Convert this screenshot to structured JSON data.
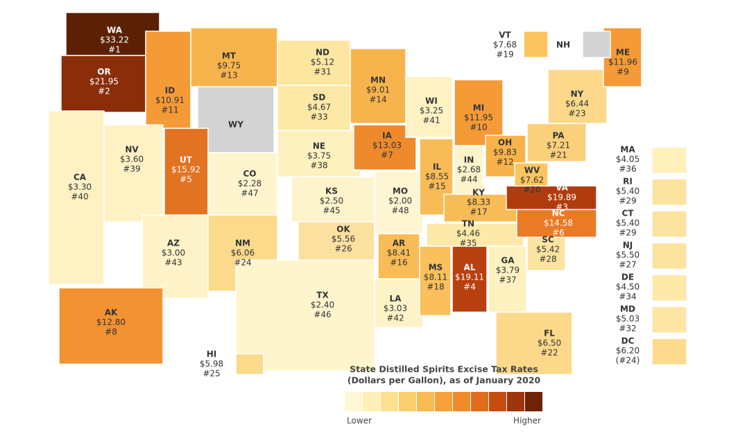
{
  "states": [
    {
      "abbr": "WA",
      "rate": "$33.22",
      "rank": "#1",
      "color": "#5c2105"
    },
    {
      "abbr": "OR",
      "rate": "$21.95",
      "rank": "#2",
      "color": "#8a2e0a"
    },
    {
      "abbr": "ID",
      "rate": "$10.91",
      "rank": "#11",
      "color": "#f49a36"
    },
    {
      "abbr": "MT",
      "rate": "$9.75",
      "rank": "#13",
      "color": "#f8b44c"
    },
    {
      "abbr": "ND",
      "rate": "$5.12",
      "rank": "#31",
      "color": "#fde7a0"
    },
    {
      "abbr": "SD",
      "rate": "$4.67",
      "rank": "#33",
      "color": "#fde9a6"
    },
    {
      "abbr": "WY",
      "color": "#d3d3d3"
    },
    {
      "abbr": "NV",
      "rate": "$3.60",
      "rank": "#39",
      "color": "#fef2c4"
    },
    {
      "abbr": "UT",
      "rate": "$15.92",
      "rank": "#5",
      "color": "#e27322"
    },
    {
      "abbr": "CO",
      "rate": "$2.28",
      "rank": "#47",
      "color": "#fef5cf"
    },
    {
      "abbr": "NE",
      "rate": "$3.75",
      "rank": "#38",
      "color": "#fef1c0"
    },
    {
      "abbr": "CA",
      "rate": "$3.30",
      "rank": "#40",
      "color": "#fef2c4"
    },
    {
      "abbr": "AZ",
      "rate": "$3.00",
      "rank": "#43",
      "color": "#fef3c8"
    },
    {
      "abbr": "NM",
      "rate": "$6.06",
      "rank": "#24",
      "color": "#fcda8c"
    },
    {
      "abbr": "KS",
      "rate": "$2.50",
      "rank": "#45",
      "color": "#fef4cc"
    },
    {
      "abbr": "OK",
      "rate": "$5.56",
      "rank": "#26",
      "color": "#fce0a0"
    },
    {
      "abbr": "TX",
      "rate": "$2.40",
      "rank": "#46",
      "color": "#fef5cd"
    },
    {
      "abbr": "MN",
      "rate": "$9.01",
      "rank": "#14",
      "color": "#f8b44c"
    },
    {
      "abbr": "IA",
      "rate": "$13.03",
      "rank": "#7",
      "color": "#ee8a2c"
    },
    {
      "abbr": "MO",
      "rate": "$2.00",
      "rank": "#48",
      "color": "#fef6d2"
    },
    {
      "abbr": "AR",
      "rate": "$8.41",
      "rank": "#16",
      "color": "#f8bc57"
    },
    {
      "abbr": "LA",
      "rate": "$3.03",
      "rank": "#42",
      "color": "#fef3c8"
    },
    {
      "abbr": "WI",
      "rate": "$3.25",
      "rank": "#41",
      "color": "#fef2c4"
    },
    {
      "abbr": "IL",
      "rate": "$8.55",
      "rank": "#15",
      "color": "#f8bc57"
    },
    {
      "abbr": "MI",
      "rate": "$11.95",
      "rank": "#10",
      "color": "#f49a36"
    },
    {
      "abbr": "IN",
      "rate": "$2.68",
      "rank": "#44",
      "color": "#fef4cc"
    },
    {
      "abbr": "OH",
      "rate": "$9.83",
      "rank": "#12",
      "color": "#f7b24a"
    },
    {
      "abbr": "KY",
      "rate": "$8.33",
      "rank": "#17",
      "color": "#f8bc57"
    },
    {
      "abbr": "TN",
      "rate": "$4.46",
      "rank": "#35",
      "color": "#fde9a8"
    },
    {
      "abbr": "MS",
      "rate": "$8.11",
      "rank": "#18",
      "color": "#f9c05c"
    },
    {
      "abbr": "AL",
      "rate": "$19.11",
      "rank": "#4",
      "color": "#b8400f"
    },
    {
      "abbr": "GA",
      "rate": "$3.79",
      "rank": "#37",
      "color": "#fef1c0"
    },
    {
      "abbr": "FL",
      "rate": "$6.50",
      "rank": "#22",
      "color": "#fcd98a"
    },
    {
      "abbr": "SC",
      "rate": "$5.42",
      "rank": "#28",
      "color": "#fde3a0"
    },
    {
      "abbr": "NC",
      "rate": "$14.58",
      "rank": "#6",
      "color": "#ea7a26"
    },
    {
      "abbr": "VA",
      "rate": "$19.89",
      "rank": "#3",
      "color": "#b03c0e"
    },
    {
      "abbr": "WV",
      "rate": "$7.62",
      "rank": "#20",
      "color": "#fbc660"
    },
    {
      "abbr": "PA",
      "rate": "$7.21",
      "rank": "#21",
      "color": "#fbd07a"
    },
    {
      "abbr": "NY",
      "rate": "$6.44",
      "rank": "#23",
      "color": "#fcd98a"
    },
    {
      "abbr": "ME",
      "rate": "$11.96",
      "rank": "#9",
      "color": "#f49a36"
    },
    {
      "abbr": "AK",
      "rate": "$12.80",
      "rank": "#8",
      "color": "#f29232"
    },
    {
      "abbr": "HI",
      "rate": "$5.98",
      "rank": "#25",
      "color": "#fcda8c"
    },
    {
      "abbr": "VT",
      "rate": "$7.68",
      "rank": "#19",
      "color": "#fbc660"
    },
    {
      "abbr": "NH",
      "color": "#d3d3d3"
    },
    {
      "abbr": "MA",
      "rate": "$4.05",
      "rank": "#36",
      "color": "#fef0b8"
    },
    {
      "abbr": "RI",
      "rate": "$5.40",
      "rank": "#29",
      "color": "#fde3a0"
    },
    {
      "abbr": "CT",
      "rate": "$5.40",
      "rank": "#29",
      "color": "#fde3a0"
    },
    {
      "abbr": "NJ",
      "rate": "$5.50",
      "rank": "#27",
      "color": "#fde3a0"
    },
    {
      "abbr": "DE",
      "rate": "$4.50",
      "rank": "#34",
      "color": "#fde9a8"
    },
    {
      "abbr": "MD",
      "rate": "$5.03",
      "rank": "#32",
      "color": "#fde6a4"
    },
    {
      "abbr": "DC",
      "rate": "$6.20",
      "rank": "(#24)",
      "color": "#fcdb8e"
    }
  ],
  "legend": {
    "title": [
      "State Distilled Spirits Excise Tax Rates",
      "(Dollars per Gallon), as of January 2020"
    ],
    "colors": [
      "#fff8d6",
      "#fdefb5",
      "#fce08e",
      "#fbcf6e",
      "#f9b953",
      "#f7a03a",
      "#f08a2a",
      "#e06c1c",
      "#c54d12",
      "#9e350b",
      "#6e2207"
    ],
    "low": "Lower",
    "high": "Higher"
  }
}
